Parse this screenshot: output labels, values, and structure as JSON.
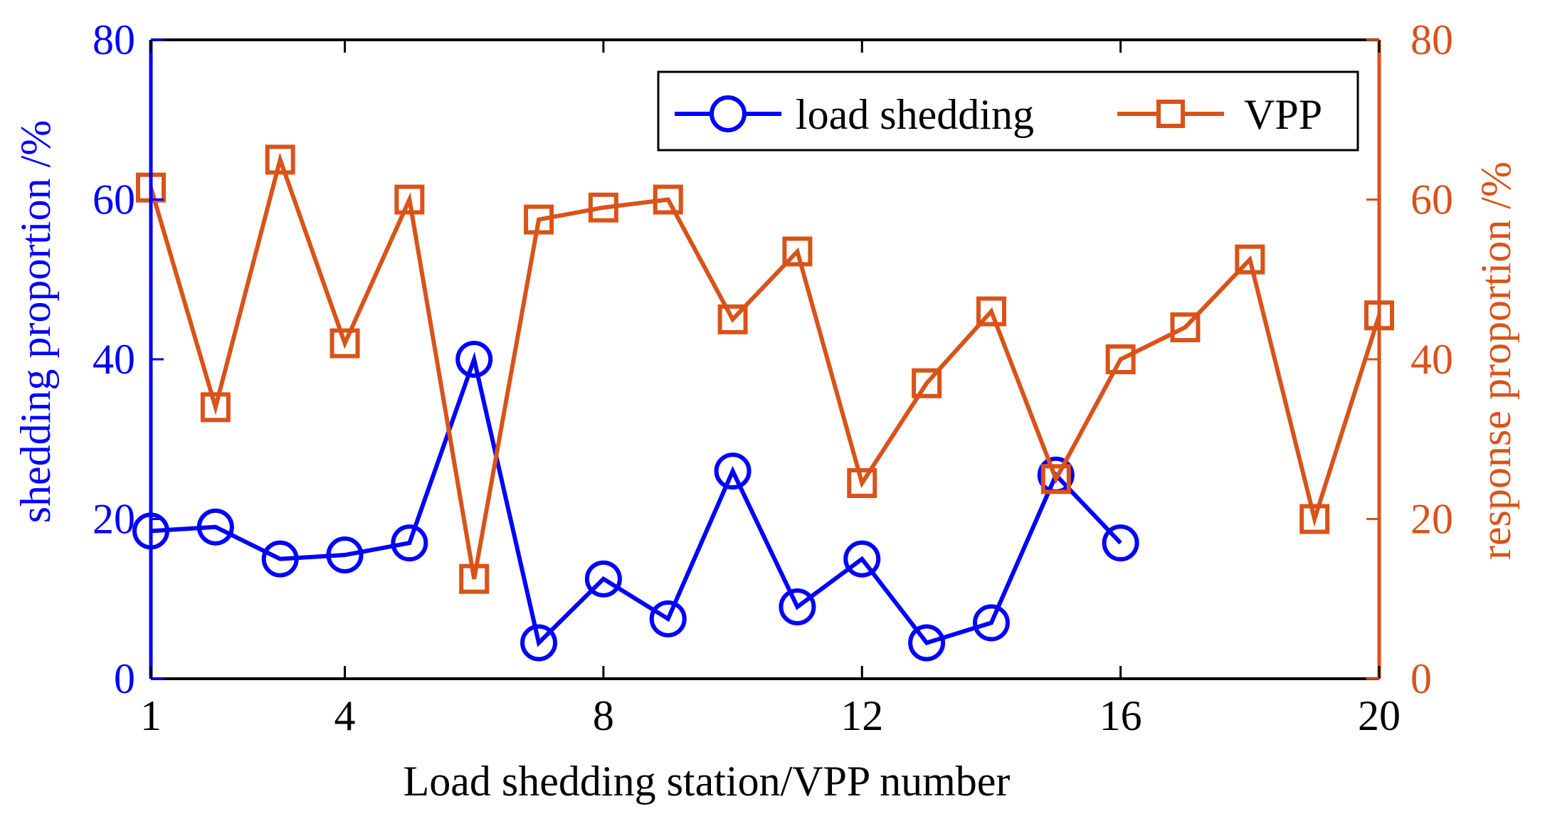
{
  "chart_data": {
    "type": "line",
    "xlabel": "Load shedding station/VPP number",
    "ylabel_left": "shedding proportion /%",
    "ylabel_right": "response proportion /%",
    "xlim": [
      1,
      20
    ],
    "ylim_left": [
      0,
      80
    ],
    "ylim_right": [
      0,
      80
    ],
    "x_ticks": [
      1,
      4,
      8,
      12,
      16,
      20
    ],
    "y_ticks_left": [
      0,
      20,
      40,
      60,
      80
    ],
    "y_ticks_right": [
      0,
      20,
      40,
      60,
      80
    ],
    "legend": {
      "placement": "top-right",
      "entries": [
        "load shedding",
        "VPP"
      ]
    },
    "series": [
      {
        "name": "load shedding",
        "axis": "left",
        "color": "#0000ff",
        "marker": "circle",
        "x": [
          1,
          2,
          3,
          4,
          5,
          6,
          7,
          8,
          9,
          10,
          11,
          12,
          13,
          14,
          15,
          16
        ],
        "values": [
          18.5,
          19,
          15,
          15.5,
          17,
          40,
          4.5,
          12.5,
          7.5,
          26,
          9,
          15,
          4.5,
          7,
          25.5,
          17
        ]
      },
      {
        "name": "VPP",
        "axis": "right",
        "color": "#d95319",
        "marker": "square",
        "x": [
          1,
          2,
          3,
          4,
          5,
          6,
          7,
          8,
          9,
          10,
          11,
          12,
          13,
          14,
          15,
          16,
          17,
          18,
          19,
          20
        ],
        "values": [
          61.5,
          34,
          65,
          42,
          60,
          12.5,
          57.5,
          59,
          60,
          45,
          53.5,
          24.5,
          37,
          46,
          25,
          40,
          44,
          52.5,
          20,
          45.5
        ]
      }
    ]
  },
  "colors": {
    "left_axis": "#0000ff",
    "right_axis": "#d95319",
    "frame": "#000000"
  }
}
